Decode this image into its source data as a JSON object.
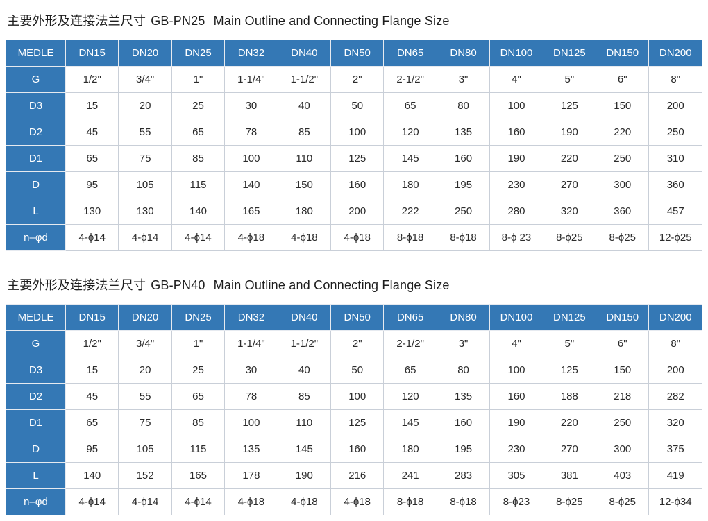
{
  "colors": {
    "header_blue": "#3478b5",
    "cell_border": "#c9cfd8",
    "header_text": "#ffffff",
    "body_text": "#2b2b2b",
    "title_text": "#1d1d1d",
    "page_background": "#ffffff"
  },
  "sections": [
    {
      "title": {
        "zh": "主要外形及连接法兰尺寸",
        "code": "GB-PN25",
        "en": "Main Outline and Connecting Flange Size"
      },
      "table": {
        "columns": [
          "MEDLE",
          "DN15",
          "DN20",
          "DN25",
          "DN32",
          "DN40",
          "DN50",
          "DN65",
          "DN80",
          "DN100",
          "DN125",
          "DN150",
          "DN200"
        ],
        "rows": [
          {
            "label": "G",
            "values": [
              "1/2\"",
              "3/4\"",
              "1\"",
              "1-1/4\"",
              "1-1/2\"",
              "2\"",
              "2-1/2\"",
              "3\"",
              "4\"",
              "5\"",
              "6\"",
              "8\""
            ]
          },
          {
            "label": "D3",
            "values": [
              "15",
              "20",
              "25",
              "30",
              "40",
              "50",
              "65",
              "80",
              "100",
              "125",
              "150",
              "200"
            ]
          },
          {
            "label": "D2",
            "values": [
              "45",
              "55",
              "65",
              "78",
              "85",
              "100",
              "120",
              "135",
              "160",
              "190",
              "220",
              "250"
            ]
          },
          {
            "label": "D1",
            "values": [
              "65",
              "75",
              "85",
              "100",
              "110",
              "125",
              "145",
              "160",
              "190",
              "220",
              "250",
              "310"
            ]
          },
          {
            "label": "D",
            "values": [
              "95",
              "105",
              "115",
              "140",
              "150",
              "160",
              "180",
              "195",
              "230",
              "270",
              "300",
              "360"
            ]
          },
          {
            "label": "L",
            "values": [
              "130",
              "130",
              "140",
              "165",
              "180",
              "200",
              "222",
              "250",
              "280",
              "320",
              "360",
              "457"
            ]
          },
          {
            "label": "n–φd",
            "values": [
              "4-ϕ14",
              "4-ϕ14",
              "4-ϕ14",
              "4-ϕ18",
              "4-ϕ18",
              "4-ϕ18",
              "8-ϕ18",
              "8-ϕ18",
              "8-ϕ 23",
              "8-ϕ25",
              "8-ϕ25",
              "12-ϕ25"
            ]
          }
        ]
      }
    },
    {
      "title": {
        "zh": "主要外形及连接法兰尺寸",
        "code": "GB-PN40",
        "en": "Main Outline and Connecting Flange Size"
      },
      "table": {
        "columns": [
          "MEDLE",
          "DN15",
          "DN20",
          "DN25",
          "DN32",
          "DN40",
          "DN50",
          "DN65",
          "DN80",
          "DN100",
          "DN125",
          "DN150",
          "DN200"
        ],
        "rows": [
          {
            "label": "G",
            "values": [
              "1/2\"",
              "3/4\"",
              "1\"",
              "1-1/4\"",
              "1-1/2\"",
              "2\"",
              "2-1/2\"",
              "3\"",
              "4\"",
              "5\"",
              "6\"",
              "8\""
            ]
          },
          {
            "label": "D3",
            "values": [
              "15",
              "20",
              "25",
              "30",
              "40",
              "50",
              "65",
              "80",
              "100",
              "125",
              "150",
              "200"
            ]
          },
          {
            "label": "D2",
            "values": [
              "45",
              "55",
              "65",
              "78",
              "85",
              "100",
              "120",
              "135",
              "160",
              "188",
              "218",
              "282"
            ]
          },
          {
            "label": "D1",
            "values": [
              "65",
              "75",
              "85",
              "100",
              "110",
              "125",
              "145",
              "160",
              "190",
              "220",
              "250",
              "320"
            ]
          },
          {
            "label": "D",
            "values": [
              "95",
              "105",
              "115",
              "135",
              "145",
              "160",
              "180",
              "195",
              "230",
              "270",
              "300",
              "375"
            ]
          },
          {
            "label": "L",
            "values": [
              "140",
              "152",
              "165",
              "178",
              "190",
              "216",
              "241",
              "283",
              "305",
              "381",
              "403",
              "419"
            ]
          },
          {
            "label": "n–φd",
            "values": [
              "4-ϕ14",
              "4-ϕ14",
              "4-ϕ14",
              "4-ϕ18",
              "4-ϕ18",
              "4-ϕ18",
              "8-ϕ18",
              "8-ϕ18",
              "8-ϕ23",
              "8-ϕ25",
              "8-ϕ25",
              "12-ϕ34"
            ]
          }
        ]
      }
    }
  ]
}
